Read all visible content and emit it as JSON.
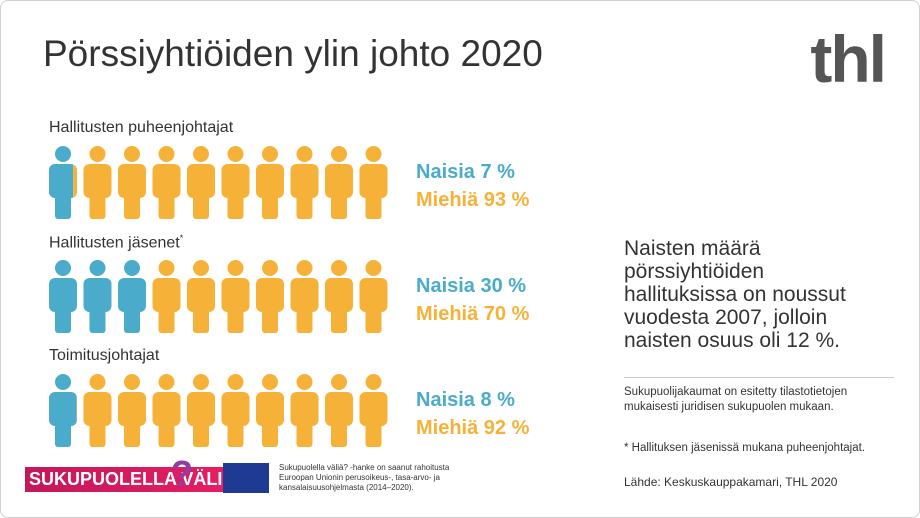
{
  "title": "Pörssiyhtiöiden ylin johto 2020",
  "logo": "thl",
  "groups": [
    {
      "title": "Hallitusten puheenjohtajat",
      "women": {
        "label": "Naisia 7 %",
        "value": 7
      },
      "men": {
        "label": "Miehiä 93 %",
        "value": 93
      }
    },
    {
      "title": "Hallitusten jäsenet",
      "marker": "*",
      "women": {
        "label": "Naisia 30 %",
        "value": 30
      },
      "men": {
        "label": "Miehiä 70 %",
        "value": 70
      }
    },
    {
      "title": "Toimitusjohtajat",
      "women": {
        "label": "Naisia 8 %",
        "value": 8
      },
      "men": {
        "label": "Miehiä 92 %",
        "value": 92
      }
    }
  ],
  "colors": {
    "women": "#4aabca",
    "men": "#f6b238"
  },
  "highlight": "Naisten määrä pörssiyhtiöiden hallituksissa on noussut vuodesta 2007, jolloin naisten osuus oli 12 %.",
  "notes": [
    "Sukupuolijakaumat on esitetty tilastotietojen mukaisesti juridisen sukupuolen mukaan.",
    "* Hallituksen jäsenissä mukana puheenjohtajat."
  ],
  "source": "Lähde:  Keskuskauppakamari, THL 2020",
  "footer": {
    "project_logo": "SUKUPUOLELLA VÄLIÄ",
    "project_mark": "?",
    "funding": "Sukupuolella väliä? -hanke on saanut rahoitusta Euroopan Unionin perusoikeus-, tasa-arvo- ja kansalaisuusohjelmasta (2014–2020)."
  }
}
